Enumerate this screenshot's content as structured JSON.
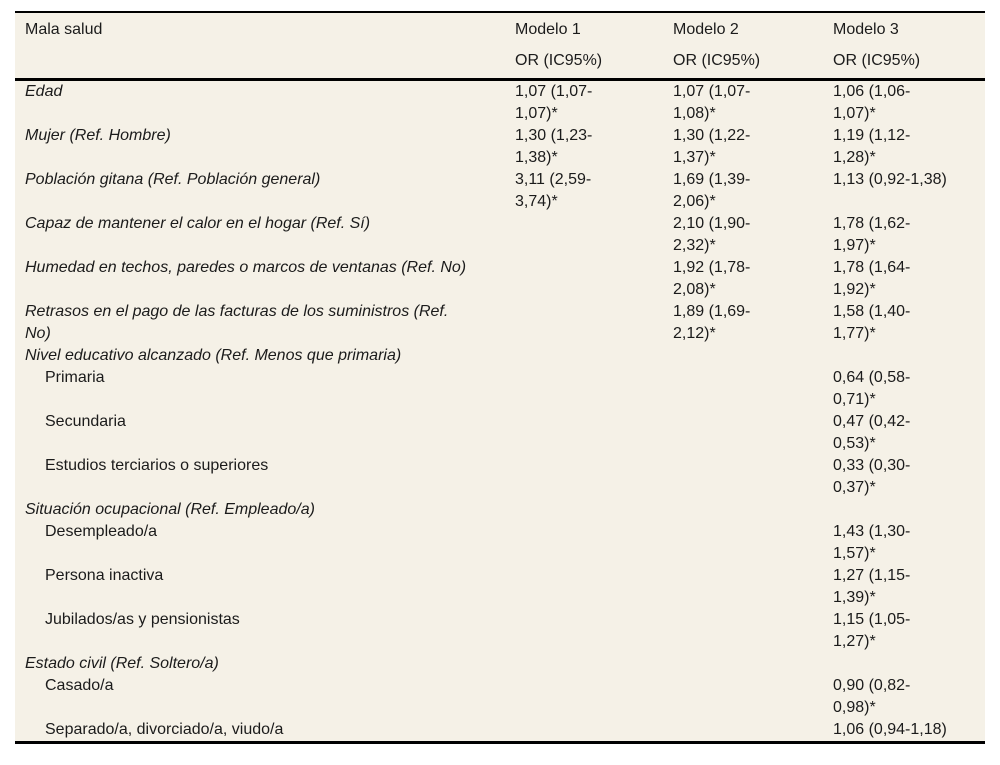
{
  "colors": {
    "page_background": "#ffffff",
    "table_background": "#f5f1e7",
    "rule": "#000000",
    "text": "#1b1b1b"
  },
  "table": {
    "title": "Mala salud",
    "columns": [
      {
        "label": "Modelo 1",
        "sublabel": "OR (IC95%)"
      },
      {
        "label": "Modelo 2",
        "sublabel": "OR (IC95%)"
      },
      {
        "label": "Modelo 3",
        "sublabel": "OR (IC95%)"
      }
    ],
    "rows": [
      {
        "label": "Edad",
        "style": "variable",
        "values": [
          "1,07 (1,07-1,07)*",
          "1,07 (1,07-1,08)*",
          "1,06 (1,06-1,07)*"
        ]
      },
      {
        "label": "Mujer (Ref. Hombre)",
        "style": "variable",
        "values": [
          "1,30 (1,23-1,38)*",
          "1,30 (1,22-1,37)*",
          "1,19 (1,12-1,28)*"
        ]
      },
      {
        "label": "Población gitana (Ref. Población general)",
        "style": "variable",
        "values": [
          "3,11 (2,59-3,74)*",
          "1,69 (1,39-2,06)*",
          "1,13 (0,92-1,38)"
        ]
      },
      {
        "label": "Capaz de mantener el calor en el hogar (Ref. Sí)",
        "style": "variable",
        "values": [
          "",
          "2,10 (1,90-2,32)*",
          "1,78 (1,62-1,97)*"
        ]
      },
      {
        "label": "Humedad en techos, paredes o marcos de ventanas (Ref. No)",
        "style": "variable",
        "values": [
          "",
          "1,92 (1,78-2,08)*",
          "1,78 (1,64-1,92)*"
        ]
      },
      {
        "label": "Retrasos en el pago de las facturas de los suministros (Ref. No)",
        "style": "variable",
        "values": [
          "",
          "1,89 (1,69-2,12)*",
          "1,58 (1,40-1,77)*"
        ]
      },
      {
        "label": "Nivel educativo alcanzado (Ref. Menos que primaria)",
        "style": "group",
        "values": [
          "",
          "",
          ""
        ]
      },
      {
        "label": "Primaria",
        "style": "sub",
        "values": [
          "",
          "",
          "0,64 (0,58-0,71)*"
        ]
      },
      {
        "label": "Secundaria",
        "style": "sub",
        "values": [
          "",
          "",
          "0,47 (0,42-0,53)*"
        ]
      },
      {
        "label": "Estudios terciarios o superiores",
        "style": "sub",
        "values": [
          "",
          "",
          "0,33 (0,30-0,37)*"
        ]
      },
      {
        "label": "Situación ocupacional (Ref. Empleado/a)",
        "style": "group",
        "values": [
          "",
          "",
          ""
        ]
      },
      {
        "label": "Desempleado/a",
        "style": "sub",
        "values": [
          "",
          "",
          "1,43 (1,30-1,57)*"
        ]
      },
      {
        "label": "Persona inactiva",
        "style": "sub",
        "values": [
          "",
          "",
          "1,27 (1,15-1,39)*"
        ]
      },
      {
        "label": "Jubilados/as y pensionistas",
        "style": "sub",
        "values": [
          "",
          "",
          "1,15 (1,05-1,27)*"
        ]
      },
      {
        "label": "Estado civil (Ref. Soltero/a)",
        "style": "group",
        "values": [
          "",
          "",
          ""
        ]
      },
      {
        "label": "Casado/a",
        "style": "sub",
        "values": [
          "",
          "",
          "0,90 (0,82-0,98)*"
        ]
      },
      {
        "label": "Separado/a, divorciado/a, viudo/a",
        "style": "sub",
        "values": [
          "",
          "",
          "1,06 (0,94-1,18)"
        ]
      }
    ]
  }
}
